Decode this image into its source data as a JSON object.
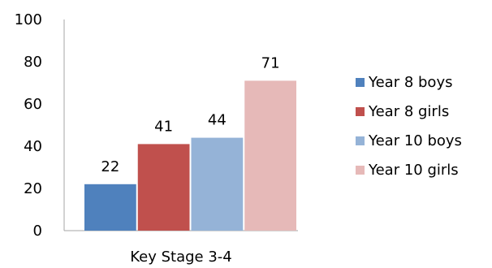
{
  "chart_data": {
    "type": "bar",
    "categories": [
      "Key Stage 3-4"
    ],
    "series": [
      {
        "name": "Year 8 boys",
        "values": [
          22
        ],
        "color": "#4f81bd"
      },
      {
        "name": "Year 8 girls",
        "values": [
          41
        ],
        "color": "#c0504d"
      },
      {
        "name": "Year 10 boys",
        "values": [
          44
        ],
        "color": "#95b3d7"
      },
      {
        "name": "Year 10 girls",
        "values": [
          71
        ],
        "color": "#e6b9b8"
      }
    ],
    "y_ticks": [
      "0",
      "20",
      "40",
      "60",
      "80",
      "100"
    ],
    "ylim": [
      0,
      100
    ],
    "grid": false,
    "legend_position": "right",
    "data_labels": true
  }
}
